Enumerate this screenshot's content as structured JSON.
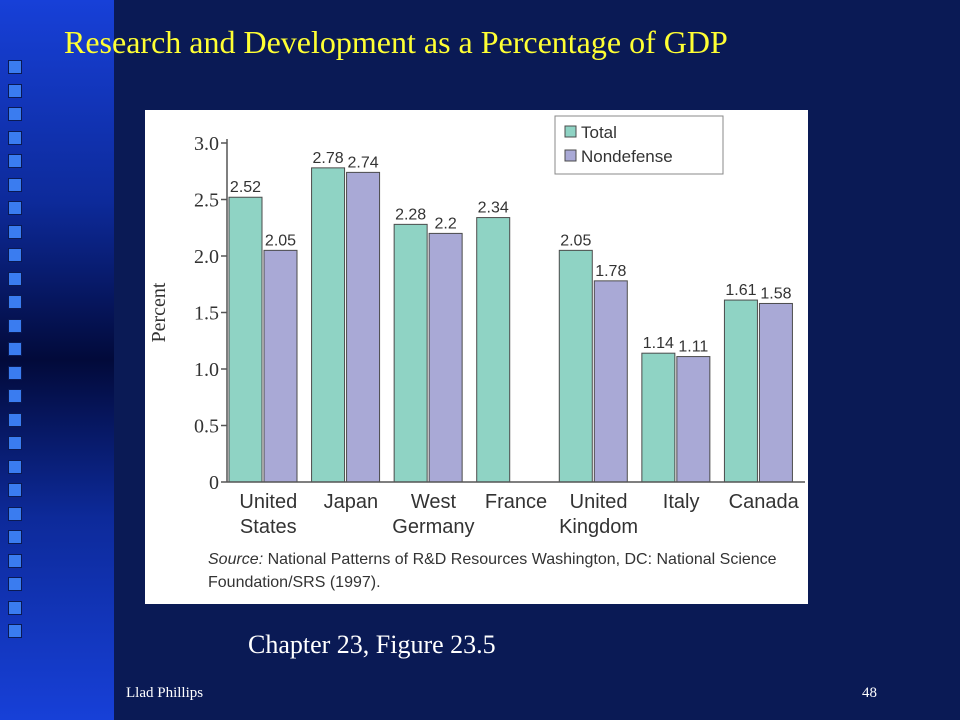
{
  "slide": {
    "title": "Research and Development as a Percentage of GDP",
    "caption": "Chapter 23, Figure 23.5",
    "author": "Llad Phillips",
    "page_number": "48"
  },
  "source_note": {
    "prefix": "Source:",
    "text": "National Patterns of R&D Resources Washington, DC: National Science Foundation/SRS (1997)."
  },
  "colors": {
    "background": "#0a1a55",
    "title": "#ffff33",
    "total": "#8fd3c4",
    "nondefense": "#a9a9d6"
  },
  "chart_data": {
    "type": "bar",
    "ylabel": "Percent",
    "ylim": [
      0,
      3.0
    ],
    "yticks": [
      "0",
      "0.5",
      "1.0",
      "1.5",
      "2.0",
      "2.5",
      "3.0"
    ],
    "categories": [
      [
        "United",
        "States"
      ],
      [
        "Japan"
      ],
      [
        "West",
        "Germany"
      ],
      [
        "France"
      ],
      [
        "United",
        "Kingdom"
      ],
      [
        "Italy"
      ],
      [
        "Canada"
      ]
    ],
    "series": [
      {
        "name": "Total",
        "values": [
          2.52,
          2.78,
          2.28,
          2.34,
          2.05,
          1.14,
          1.61
        ],
        "labels": [
          "2.52",
          "2.78",
          "2.28",
          "2.34",
          "2.05",
          "1.14",
          "1.61"
        ]
      },
      {
        "name": "Nondefense",
        "values": [
          2.05,
          2.74,
          2.2,
          null,
          1.78,
          1.11,
          1.58
        ],
        "labels": [
          "2.05",
          "2.74",
          "2.2",
          "",
          "1.78",
          "1.11",
          "1.58"
        ]
      }
    ],
    "legend_position": "top-right",
    "grid": false
  }
}
